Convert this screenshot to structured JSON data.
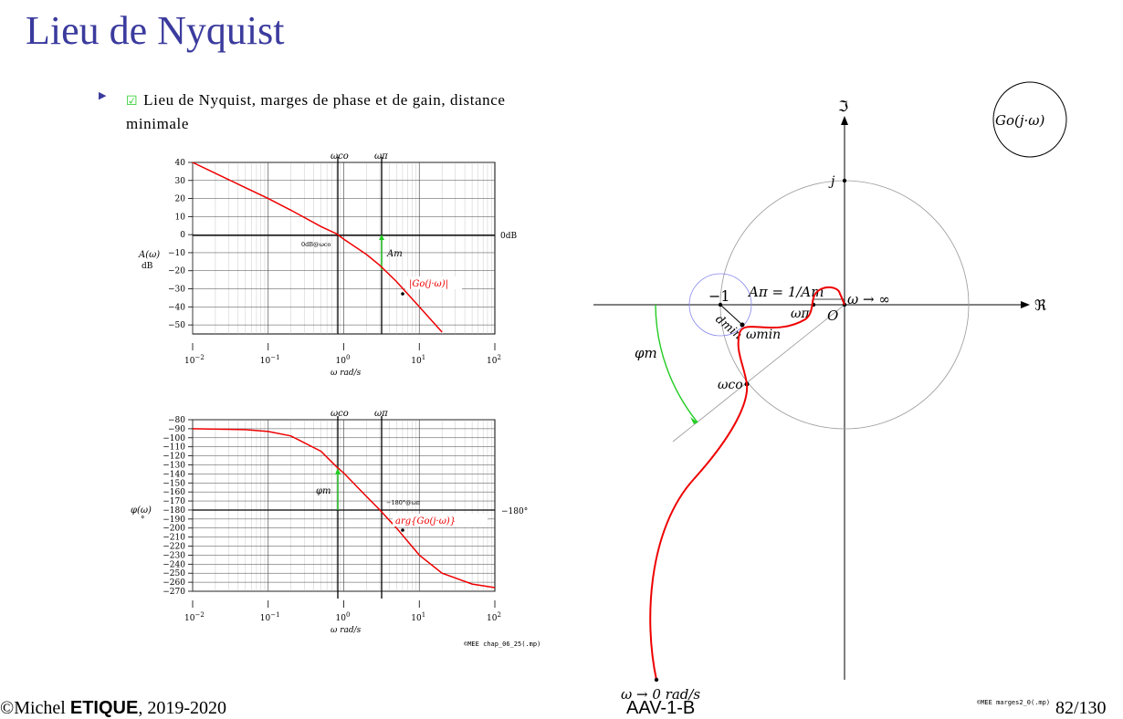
{
  "slide": {
    "title": "Lieu de Nyquist",
    "bullet_text": "Lieu de Nyquist, marges de phase et de gain, distance minimale"
  },
  "footer": {
    "author_prefix": "©Michel ",
    "author_name": "ETIQUE",
    "years": ", 2019-2020",
    "course": "AAV-1-B",
    "page": "82/130",
    "credit_left": "©MEE chap_06_25(.mp)",
    "credit_right": "©MEE marges2_0(.mp)"
  },
  "labels": {
    "w_co": "ωco",
    "w_pi": "ωπ",
    "zero_db_at": "0dB@ωco",
    "zero_db": "0dB",
    "am": "Am",
    "gain_curve": "|Go(j·ω)|",
    "gain_ylabel": "A(ω)",
    "gain_unit": "dB",
    "x_unit": "ω rad/s",
    "phi_m": "φm",
    "m180_at": "−180°@ωπ",
    "m180": "−180°",
    "phase_curve": "arg{Go(j·ω)}",
    "phase_ylabel": "φ(ω)",
    "phase_unit": "°",
    "im_axis": "ℑ",
    "re_axis": "ℜ",
    "j": "j",
    "minus_one": "−1",
    "a_pi": "Aπ = 1/Am",
    "w_inf": "ω → ∞",
    "origin": "O",
    "d_min": "dmin",
    "w_min": "ωmin",
    "w_zero": "ω → 0 rad/s",
    "go_label": "Go(j·ω)"
  },
  "chart_data": [
    {
      "type": "line",
      "title": "",
      "xscale": "log",
      "xlim": [
        0.01,
        100
      ],
      "ylim": [
        -55,
        40
      ],
      "yticks": [
        40,
        30,
        20,
        10,
        0,
        -10,
        -20,
        -30,
        -40,
        -50
      ],
      "xticks": [
        "10^-2",
        "10^-1",
        "10^0",
        "10^1",
        "10^2"
      ],
      "series": [
        {
          "name": "|Go(j·ω)|",
          "x": [
            0.01,
            0.02,
            0.05,
            0.1,
            0.2,
            0.5,
            0.8,
            1,
            2,
            3,
            5,
            10,
            20
          ],
          "y": [
            40,
            34,
            26,
            20,
            13.5,
            4.5,
            0.5,
            -2.5,
            -11,
            -17,
            -26,
            -40,
            -54
          ]
        }
      ]
    },
    {
      "type": "line",
      "title": "",
      "xscale": "log",
      "xlim": [
        0.01,
        100
      ],
      "ylim": [
        -270,
        -80
      ],
      "yticks": [
        -80,
        -90,
        -100,
        -110,
        -120,
        -130,
        -140,
        -150,
        -160,
        -170,
        -180,
        -190,
        -200,
        -210,
        -220,
        -230,
        -240,
        -250,
        -260,
        -270
      ],
      "xticks": [
        "10^-2",
        "10^-1",
        "10^0",
        "10^1",
        "10^2"
      ],
      "series": [
        {
          "name": "arg{Go(j·ω)}",
          "x": [
            0.01,
            0.05,
            0.1,
            0.2,
            0.5,
            0.8,
            1,
            2,
            3,
            5,
            10,
            20,
            50,
            100
          ],
          "y": [
            -90,
            -91,
            -93,
            -98,
            -115,
            -132,
            -139,
            -165,
            -180,
            -200,
            -230,
            -250,
            -262,
            -266
          ]
        }
      ]
    }
  ]
}
